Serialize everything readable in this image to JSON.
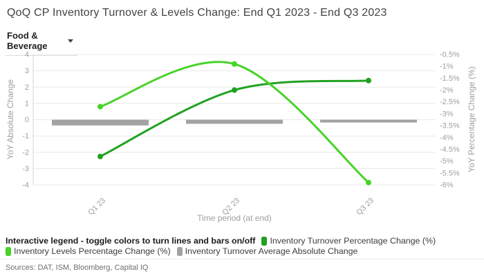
{
  "header": {
    "title": "QoQ CP Inventory Turnover & Levels Change: End Q1 2023 - End Q3 2023",
    "sector_dropdown": {
      "value": "Food & Beverage"
    }
  },
  "chart_data": {
    "type": "line",
    "title": "QoQ CP Inventory Turnover & Levels Change: End Q1 2023 - End Q3 2023",
    "categories": [
      "Q1 23",
      "Q2 23",
      "Q3 23"
    ],
    "xlabel": "Time period (at end)",
    "x_axis": {
      "title": "Time period (at end)",
      "tick_labels": [
        "Q1 23",
        "Q2 23",
        "Q3 23"
      ]
    },
    "left_axis": {
      "title": "YoY Absolute Change",
      "min": -4,
      "max": 4,
      "step": 1,
      "tick_labels": [
        "4",
        "3",
        "2",
        "1",
        "0",
        "-1",
        "-2",
        "-3",
        "-4"
      ]
    },
    "right_axis": {
      "title": "YoY Percentage Change (%)",
      "min": -6,
      "max": -0.5,
      "step": 0.5,
      "tick_labels": [
        "-0.5%",
        "-1%",
        "-1.5%",
        "-2%",
        "-2.5%",
        "-3%",
        "-3.5%",
        "-4%",
        "-4.5%",
        "-5%",
        "-5.5%",
        "-6%"
      ]
    },
    "grid": true,
    "legend_position": "bottom",
    "series": [
      {
        "name": "Inventory Turnover Percentage Change (%)",
        "type": "line",
        "axis": "right",
        "color": "#1fa21f",
        "values": [
          -4.8,
          -2.0,
          -1.6
        ]
      },
      {
        "name": "Inventory Levels Percentage Change (%)",
        "type": "line",
        "axis": "right",
        "color": "#47d327",
        "values": [
          -2.7,
          -0.9,
          -5.9
        ]
      },
      {
        "name": "Inventory Turnover Average Absolute Change",
        "type": "bar",
        "axis": "left",
        "color": "#a2a2a2",
        "values": [
          -0.35,
          -0.25,
          -0.15
        ]
      }
    ]
  },
  "legend": {
    "intro": "Interactive legend - toggle colors to turn lines and bars on/off",
    "items": [
      {
        "label": "Inventory Turnover Percentage Change (%)",
        "color": "#1fa21f"
      },
      {
        "label": "Inventory Levels Percentage Change (%)",
        "color": "#47d327"
      },
      {
        "label": "Inventory Turnover Average Absolute Change",
        "color": "#a2a2a2"
      }
    ]
  },
  "footer": {
    "sources": "Sources: DAT, ISM, Bloomberg, Capital IQ"
  }
}
